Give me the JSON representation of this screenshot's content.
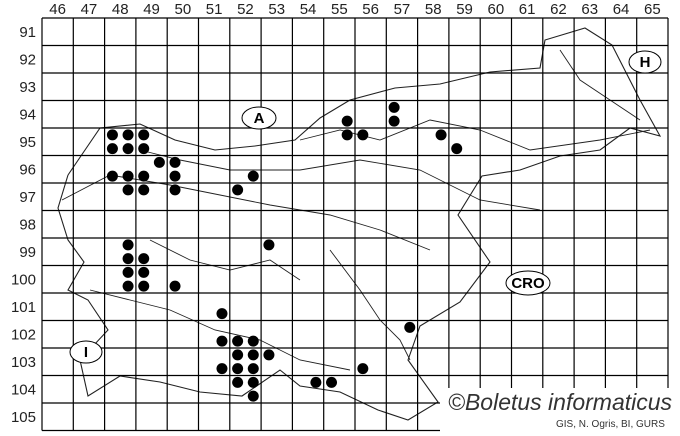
{
  "map": {
    "columns": [
      "46",
      "47",
      "48",
      "49",
      "50",
      "51",
      "52",
      "53",
      "54",
      "55",
      "56",
      "57",
      "58",
      "59",
      "60",
      "61",
      "62",
      "63",
      "64",
      "65"
    ],
    "rows": [
      "91",
      "92",
      "93",
      "94",
      "95",
      "96",
      "97",
      "98",
      "99",
      "100",
      "101",
      "102",
      "103",
      "104",
      "105"
    ],
    "country_labels": [
      {
        "text": "A"
      },
      {
        "text": "H"
      },
      {
        "text": "I"
      },
      {
        "text": "CRO"
      }
    ],
    "watermark": "©Boletus informaticus",
    "credit": "GIS, N. Ogris, BI, GURS",
    "dot_color": "#000000",
    "records": [
      [
        48.25,
        95.25
      ],
      [
        48.75,
        95.25
      ],
      [
        49.25,
        95.25
      ],
      [
        48.25,
        95.75
      ],
      [
        48.75,
        95.75
      ],
      [
        49.25,
        95.75
      ],
      [
        49.75,
        96.25
      ],
      [
        50.25,
        96.25
      ],
      [
        48.25,
        96.75
      ],
      [
        48.75,
        96.75
      ],
      [
        49.25,
        96.75
      ],
      [
        50.25,
        96.75
      ],
      [
        48.75,
        97.25
      ],
      [
        49.25,
        97.25
      ],
      [
        50.25,
        97.25
      ],
      [
        52.75,
        96.75
      ],
      [
        52.25,
        97.25
      ],
      [
        57.25,
        94.25
      ],
      [
        57.25,
        94.75
      ],
      [
        55.75,
        94.75
      ],
      [
        55.75,
        95.25
      ],
      [
        56.25,
        95.25
      ],
      [
        58.75,
        95.25
      ],
      [
        59.25,
        95.75
      ],
      [
        48.75,
        99.25
      ],
      [
        48.75,
        99.75
      ],
      [
        49.25,
        99.75
      ],
      [
        48.75,
        100.25
      ],
      [
        49.25,
        100.25
      ],
      [
        48.75,
        100.75
      ],
      [
        49.25,
        100.75
      ],
      [
        50.25,
        100.75
      ],
      [
        53.25,
        99.25
      ],
      [
        51.75,
        101.75
      ],
      [
        51.75,
        102.75
      ],
      [
        52.25,
        102.75
      ],
      [
        52.75,
        102.75
      ],
      [
        52.25,
        103.25
      ],
      [
        52.75,
        103.25
      ],
      [
        53.25,
        103.25
      ],
      [
        51.75,
        103.75
      ],
      [
        52.25,
        103.75
      ],
      [
        52.75,
        103.75
      ],
      [
        52.25,
        104.25
      ],
      [
        52.75,
        104.25
      ],
      [
        52.75,
        104.75
      ],
      [
        54.75,
        104.25
      ],
      [
        55.25,
        104.25
      ],
      [
        57.75,
        102.25
      ],
      [
        56.25,
        103.75
      ]
    ]
  }
}
